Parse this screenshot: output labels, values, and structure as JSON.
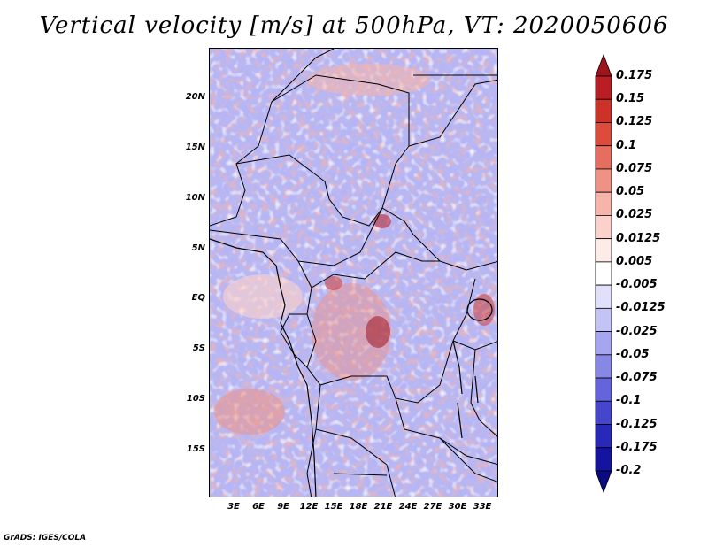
{
  "title": "Vertical velocity [m/s] at 500hPa, VT: 2020050606",
  "credit": "GrADS: IGES/COLA",
  "map": {
    "lat_labels": [
      "20N",
      "15N",
      "10N",
      "5N",
      "EQ",
      "5S",
      "10S",
      "15S"
    ],
    "lon_labels": [
      "3E",
      "6E",
      "9E",
      "12E",
      "15E",
      "18E",
      "21E",
      "24E",
      "27E",
      "30E",
      "33E"
    ]
  },
  "colorbar": {
    "labels": [
      "0.175",
      "0.15",
      "0.125",
      "0.1",
      "0.075",
      "0.05",
      "0.025",
      "0.0125",
      "0.005",
      "-0.005",
      "-0.0125",
      "-0.025",
      "-0.05",
      "-0.075",
      "-0.1",
      "-0.125",
      "-0.175",
      "-0.2"
    ],
    "colors": [
      "#a0141e",
      "#b81e23",
      "#cd3228",
      "#dc4b3c",
      "#e66e5f",
      "#ef9183",
      "#f6b4aa",
      "#fbd2cb",
      "#fdebe8",
      "#ffffff",
      "#e0e0fa",
      "#c3c3f5",
      "#a5a5f0",
      "#8787e6",
      "#6464dc",
      "#4646cd",
      "#2828b9",
      "#1414a0",
      "#0a0a82"
    ]
  }
}
